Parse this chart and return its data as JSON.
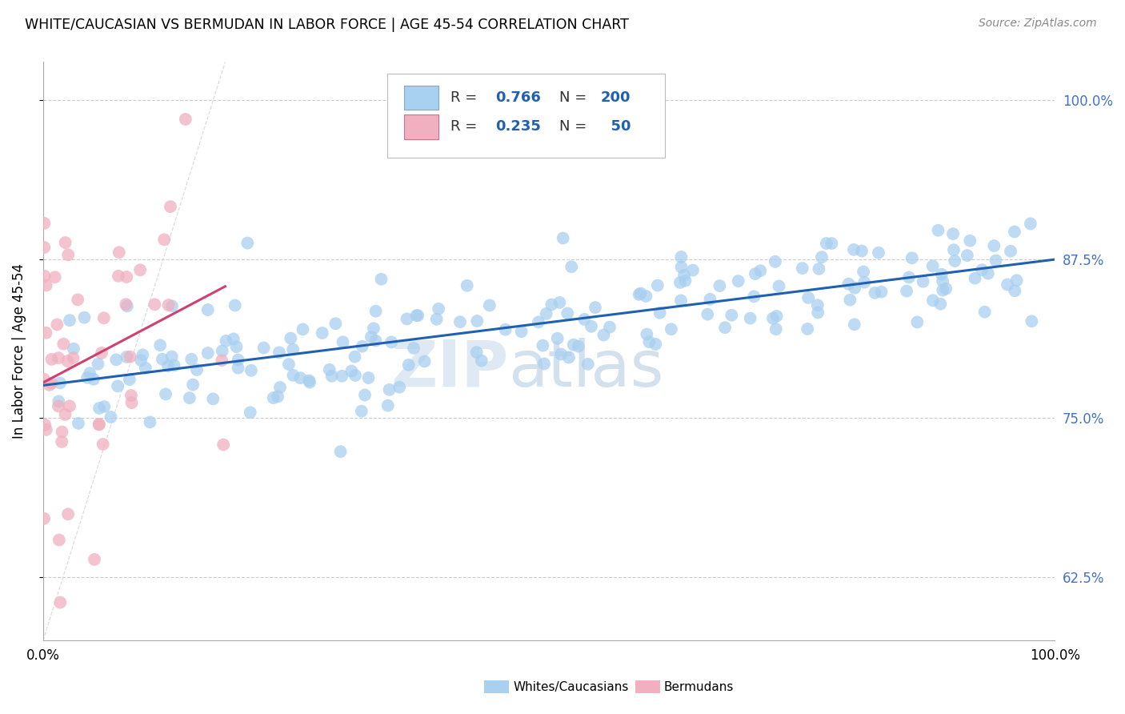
{
  "title": "WHITE/CAUCASIAN VS BERMUDAN IN LABOR FORCE | AGE 45-54 CORRELATION CHART",
  "source": "Source: ZipAtlas.com",
  "ylabel": "In Labor Force | Age 45-54",
  "xlim": [
    0,
    1
  ],
  "ylim": [
    0.575,
    1.03
  ],
  "yticks": [
    0.625,
    0.75,
    0.875,
    1.0
  ],
  "ytick_labels": [
    "62.5%",
    "75.0%",
    "87.5%",
    "100.0%"
  ],
  "blue_color": "#A8D0F0",
  "blue_line_color": "#2060B0",
  "pink_color": "#F0B0C0",
  "pink_line_color": "#D04070",
  "blue_R": 0.766,
  "blue_N": 200,
  "pink_R": 0.235,
  "pink_N": 50,
  "watermark_zip": "ZIP",
  "watermark_atlas": "atlas",
  "watermark_zip_color": "#C8D8E8",
  "watermark_atlas_color": "#A8C8E0",
  "legend_entries": [
    "Whites/Caucasians",
    "Bermudans"
  ],
  "background_color": "#FFFFFF",
  "grid_color": "#CCCCCC",
  "right_ytick_color": "#4472C4",
  "seed": 42
}
